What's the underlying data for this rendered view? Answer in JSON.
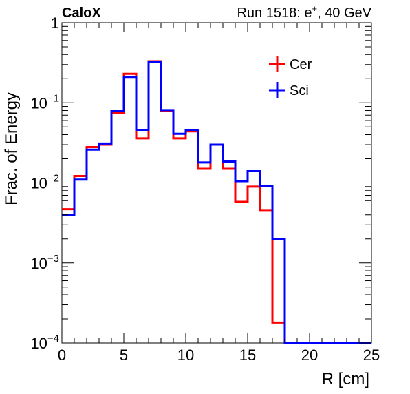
{
  "chart_data": {
    "type": "line",
    "subtype": "histogram-step",
    "title_left": "CaloX",
    "title_right_prefix": "Run 1518: e",
    "title_right_sup": "+",
    "title_right_suffix": ", 40 GeV",
    "xlabel": "R [cm]",
    "ylabel": "Frac. of Energy",
    "xlim": [
      0,
      25
    ],
    "ylim": [
      0.0001,
      1
    ],
    "yscale": "log",
    "grid": false,
    "legend_position": "top-right",
    "x_ticks": [
      0,
      5,
      10,
      15,
      20,
      25
    ],
    "x_tick_labels": [
      "0",
      "5",
      "10",
      "15",
      "20",
      "25"
    ],
    "y_ticks": [
      0.0001,
      0.001,
      0.01,
      0.1,
      1
    ],
    "y_tick_labels": [
      {
        "base": "10",
        "exp": "−4"
      },
      {
        "base": "10",
        "exp": "−3"
      },
      {
        "base": "10",
        "exp": "−2"
      },
      {
        "base": "10",
        "exp": "−1"
      },
      {
        "base": "1",
        "exp": ""
      }
    ],
    "bin_edges": [
      0,
      1,
      2,
      3,
      4,
      5,
      6,
      7,
      8,
      9,
      10,
      11,
      12,
      13,
      14,
      15,
      16,
      17,
      18,
      19,
      20,
      21,
      22,
      23,
      24,
      25
    ],
    "series": [
      {
        "name": "Cer",
        "color": "#ff0000",
        "values": [
          0.0047,
          0.0122,
          0.028,
          0.03,
          0.075,
          0.23,
          0.036,
          0.33,
          0.08,
          0.036,
          0.044,
          0.015,
          0.03,
          0.015,
          0.0058,
          0.009,
          0.0045,
          0.00018,
          0.0001,
          0.0001,
          0.0001,
          0.0001,
          0.0001,
          0.0001,
          0.0001
        ]
      },
      {
        "name": "Sci",
        "color": "#0000ff",
        "values": [
          0.004,
          0.011,
          0.026,
          0.031,
          0.079,
          0.21,
          0.046,
          0.32,
          0.081,
          0.041,
          0.046,
          0.018,
          0.03,
          0.0185,
          0.0105,
          0.014,
          0.0092,
          0.002,
          0.0001,
          0.0001,
          0.0001,
          0.0001,
          0.0001,
          0.0001,
          0.0001
        ]
      }
    ]
  }
}
